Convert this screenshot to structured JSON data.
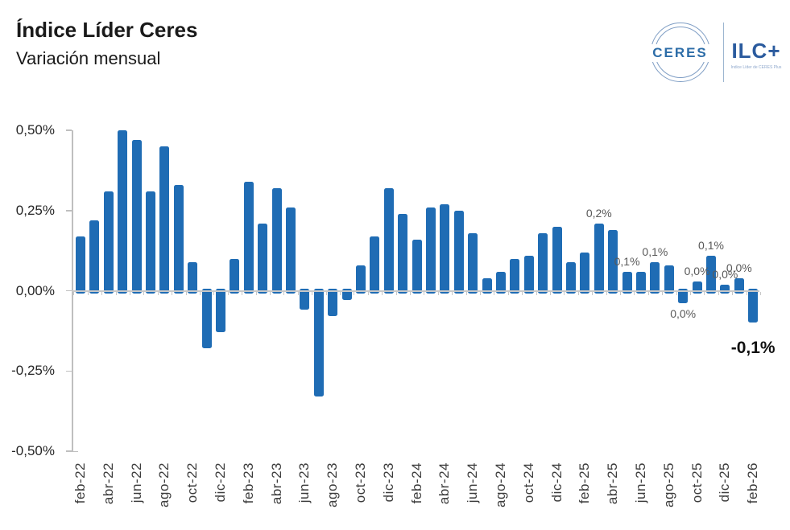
{
  "header": {
    "title": "Índice Líder Ceres",
    "subtitle": "Variación mensual"
  },
  "logo": {
    "ceres": "CERES",
    "ilc": "ILC+",
    "caption": "Índice Líder de CERES Plus"
  },
  "colors": {
    "bar": "#1f6cb4",
    "axis": "#bfbfbf",
    "zero_line": "#c8c8c8",
    "point_label": "#595959",
    "highlight_label": "#111111",
    "logo_blue": "#2b5b9e",
    "title_text": "#1a1a1a"
  },
  "chart_data": {
    "type": "bar",
    "title": "Índice Líder Ceres",
    "subtitle": "Variación mensual",
    "xlabel": "",
    "ylabel": "",
    "unit": "%",
    "ylim": [
      -0.5,
      0.5
    ],
    "grid": false,
    "legend": "none",
    "yticks": [
      {
        "value": 0.5,
        "label": "0,50%"
      },
      {
        "value": 0.25,
        "label": "0,25%"
      },
      {
        "value": 0.0,
        "label": "0,00%"
      },
      {
        "value": -0.25,
        "label": "-0,25%"
      },
      {
        "value": -0.5,
        "label": "-0,50%"
      }
    ],
    "x_labels_every": 2,
    "categories": [
      "feb-22",
      "mar-22",
      "abr-22",
      "may-22",
      "jun-22",
      "jul-22",
      "ago-22",
      "sep-22",
      "oct-22",
      "nov-22",
      "dic-22",
      "ene-23",
      "feb-23",
      "mar-23",
      "abr-23",
      "may-23",
      "jun-23",
      "jul-23",
      "ago-23",
      "sep-23",
      "oct-23",
      "nov-23",
      "dic-23",
      "ene-24",
      "feb-24",
      "mar-24",
      "abr-24",
      "may-24",
      "jun-24",
      "jul-24",
      "ago-24",
      "sep-24",
      "oct-24",
      "nov-24",
      "dic-24",
      "ene-25",
      "feb-25",
      "mar-25",
      "abr-25",
      "may-25",
      "jun-25",
      "jul-25",
      "ago-25",
      "sep-25",
      "oct-25",
      "nov-25",
      "dic-25",
      "ene-26",
      "feb-26"
    ],
    "values": [
      0.17,
      0.22,
      0.31,
      0.5,
      0.47,
      0.31,
      0.45,
      0.33,
      0.09,
      -0.18,
      -0.13,
      0.1,
      0.34,
      0.21,
      0.32,
      0.26,
      -0.06,
      -0.33,
      -0.08,
      -0.03,
      0.08,
      0.17,
      0.32,
      0.24,
      0.16,
      0.26,
      0.27,
      0.25,
      0.18,
      0.04,
      0.06,
      0.1,
      0.11,
      0.18,
      0.2,
      0.09,
      0.12,
      0.21,
      0.19,
      0.06,
      0.06,
      0.09,
      0.08,
      -0.04,
      0.03,
      0.11,
      0.02,
      0.04,
      -0.1
    ],
    "point_labels": [
      {
        "index": 37,
        "text": "0,2%",
        "position": "above"
      },
      {
        "index": 39,
        "text": "0,1%",
        "position": "above"
      },
      {
        "index": 41,
        "text": "0,1%",
        "position": "above"
      },
      {
        "index": 43,
        "text": "0,0%",
        "position": "below"
      },
      {
        "index": 44,
        "text": "0,0%",
        "position": "above"
      },
      {
        "index": 45,
        "text": "0,1%",
        "position": "above"
      },
      {
        "index": 46,
        "text": "0,0%",
        "position": "above"
      },
      {
        "index": 47,
        "text": "0,0%",
        "position": "above"
      },
      {
        "index": 48,
        "text": "-0,1%",
        "position": "below",
        "emphasis": true
      }
    ]
  }
}
